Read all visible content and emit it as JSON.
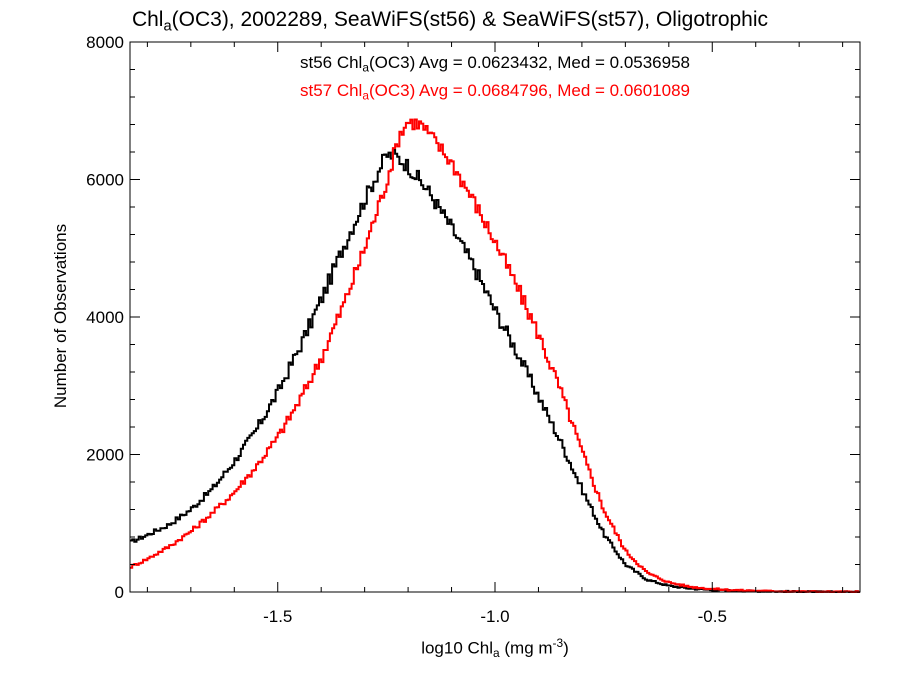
{
  "title": {
    "pre": "Chl",
    "sub": "a",
    "post": "(OC3), 2002289, SeaWiFS(st56) & SeaWiFS(st57), Oligotrophic"
  },
  "stats": [
    {
      "pre": "st56 Chl",
      "sub": "a",
      "post": "(OC3) Avg = 0.0623432, Med = 0.0536958",
      "color": "#000000"
    },
    {
      "pre": "st57 Chl",
      "sub": "a",
      "post": "(OC3) Avg = 0.0684796, Med = 0.0601089",
      "color": "#ff0000"
    }
  ],
  "chart_data": {
    "type": "line",
    "step": true,
    "xlabel": {
      "pre": "log10 Chl",
      "sub": "a",
      "mid": " (mg m",
      "sup": "-3",
      "post": ")"
    },
    "ylabel": "Number of Observations",
    "xlim": [
      -1.84,
      -0.16
    ],
    "ylim": [
      0,
      8000
    ],
    "xticks": [
      -1.5,
      -1.0,
      -0.5
    ],
    "xtick_labels": [
      "-1.5",
      "-1.0",
      "-0.5"
    ],
    "yticks": [
      0,
      2000,
      4000,
      6000,
      8000
    ],
    "ytick_labels": [
      "0",
      "2000",
      "4000",
      "6000",
      "8000"
    ],
    "grid": false,
    "series": [
      {
        "name": "st56",
        "color": "#000000",
        "points": [
          [
            -1.84,
            720
          ],
          [
            -1.8,
            830
          ],
          [
            -1.75,
            980
          ],
          [
            -1.7,
            1200
          ],
          [
            -1.65,
            1500
          ],
          [
            -1.6,
            1900
          ],
          [
            -1.55,
            2350
          ],
          [
            -1.5,
            2900
          ],
          [
            -1.45,
            3550
          ],
          [
            -1.4,
            4250
          ],
          [
            -1.35,
            5000
          ],
          [
            -1.3,
            5700
          ],
          [
            -1.27,
            6100
          ],
          [
            -1.25,
            6350
          ],
          [
            -1.23,
            6350
          ],
          [
            -1.2,
            6200
          ],
          [
            -1.15,
            5800
          ],
          [
            -1.1,
            5300
          ],
          [
            -1.05,
            4750
          ],
          [
            -1.0,
            4100
          ],
          [
            -0.95,
            3500
          ],
          [
            -0.9,
            2850
          ],
          [
            -0.85,
            2200
          ],
          [
            -0.8,
            1500
          ],
          [
            -0.75,
            850
          ],
          [
            -0.7,
            400
          ],
          [
            -0.65,
            180
          ],
          [
            -0.6,
            90
          ],
          [
            -0.55,
            50
          ],
          [
            -0.5,
            30
          ],
          [
            -0.45,
            20
          ],
          [
            -0.4,
            12
          ],
          [
            -0.35,
            8
          ],
          [
            -0.3,
            5
          ],
          [
            -0.25,
            3
          ],
          [
            -0.2,
            2
          ],
          [
            -0.16,
            1
          ]
        ]
      },
      {
        "name": "st57",
        "color": "#ff0000",
        "points": [
          [
            -1.84,
            360
          ],
          [
            -1.8,
            480
          ],
          [
            -1.75,
            660
          ],
          [
            -1.7,
            880
          ],
          [
            -1.65,
            1150
          ],
          [
            -1.6,
            1450
          ],
          [
            -1.55,
            1820
          ],
          [
            -1.5,
            2250
          ],
          [
            -1.45,
            2780
          ],
          [
            -1.4,
            3400
          ],
          [
            -1.35,
            4150
          ],
          [
            -1.3,
            5000
          ],
          [
            -1.25,
            5950
          ],
          [
            -1.22,
            6650
          ],
          [
            -1.2,
            6850
          ],
          [
            -1.17,
            6800
          ],
          [
            -1.15,
            6650
          ],
          [
            -1.1,
            6250
          ],
          [
            -1.05,
            5700
          ],
          [
            -1.0,
            5100
          ],
          [
            -0.95,
            4450
          ],
          [
            -0.9,
            3750
          ],
          [
            -0.85,
            2950
          ],
          [
            -0.8,
            2050
          ],
          [
            -0.75,
            1200
          ],
          [
            -0.7,
            600
          ],
          [
            -0.65,
            280
          ],
          [
            -0.6,
            140
          ],
          [
            -0.55,
            75
          ],
          [
            -0.5,
            45
          ],
          [
            -0.45,
            28
          ],
          [
            -0.4,
            18
          ],
          [
            -0.35,
            11
          ],
          [
            -0.3,
            7
          ],
          [
            -0.25,
            4
          ],
          [
            -0.2,
            2
          ],
          [
            -0.16,
            1
          ]
        ]
      }
    ]
  }
}
